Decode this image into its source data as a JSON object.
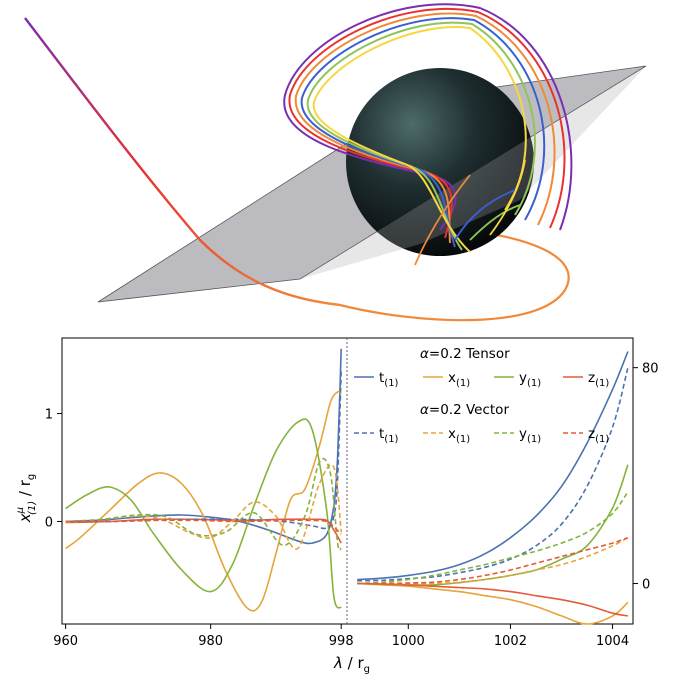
{
  "chart_data": {
    "type": "line",
    "top_panel": {
      "description_visible": false,
      "colors": [
        "#7b2fb0",
        "#e8322e",
        "#f08a3a",
        "#3a5fd0",
        "#8fc45a",
        "#f5d742"
      ]
    },
    "left_axis": {
      "xlim": [
        959.5,
        998.8
      ],
      "ylim": [
        -0.95,
        1.7
      ],
      "xticks": [
        {
          "v": 960,
          "label": "960"
        },
        {
          "v": 980,
          "label": "980"
        },
        {
          "v": 998,
          "label": "998"
        }
      ],
      "yticks": [
        {
          "v": 0,
          "label": "0"
        },
        {
          "v": 1,
          "label": "1"
        }
      ],
      "ylabel_main": "x",
      "ylabel_sup": "μ",
      "ylabel_sub": "(1)",
      "ylabel_tail": " / r",
      "ylabel_tail_sub": "g"
    },
    "right_axis": {
      "xlim": [
        998.8,
        1004.4
      ],
      "ylim": [
        -15,
        91
      ],
      "xticks": [
        {
          "v": 1000,
          "label": "1000"
        },
        {
          "v": 1002,
          "label": "1002"
        },
        {
          "v": 1004,
          "label": "1004"
        }
      ],
      "yticks": [
        {
          "v": 0,
          "label": "0"
        },
        {
          "v": 80,
          "label": "80"
        }
      ]
    },
    "xlabel_main": "λ",
    "xlabel_tail": " / r",
    "xlabel_tail_sub": "g",
    "legend": {
      "placement": "top-right",
      "groups": [
        {
          "title_alpha": "α",
          "title_rest": "=0.2 Tensor",
          "style": "solid"
        },
        {
          "title_alpha": "α",
          "title_rest": "=0.2 Vector",
          "style": "dashed"
        }
      ],
      "entries": [
        {
          "base": "t",
          "sub": "(1)",
          "color": "#4c72b0"
        },
        {
          "base": "x",
          "sub": "(1)",
          "color": "#e8a33c"
        },
        {
          "base": "y",
          "sub": "(1)",
          "color": "#86b33c"
        },
        {
          "base": "z",
          "sub": "(1)",
          "color": "#e45c3a"
        }
      ]
    },
    "series_left": [
      {
        "name": "t(1) Tensor",
        "color": "#4c72b0",
        "dash": false,
        "x": [
          960,
          964,
          968,
          972,
          976,
          980,
          984,
          988,
          992,
          994,
          996,
          997,
          997.5,
          998
        ],
        "y": [
          0.0,
          0.01,
          0.03,
          0.05,
          0.06,
          0.04,
          0.0,
          -0.08,
          -0.18,
          -0.2,
          -0.12,
          0.15,
          0.6,
          1.6
        ]
      },
      {
        "name": "x(1) Tensor",
        "color": "#e8a33c",
        "dash": false,
        "x": [
          960,
          962,
          966,
          970,
          973,
          976,
          979,
          982,
          985,
          987,
          989,
          991,
          993,
          995,
          996.5,
          997.5,
          998
        ],
        "y": [
          -0.25,
          -0.15,
          0.1,
          0.35,
          0.45,
          0.35,
          0.05,
          -0.45,
          -0.8,
          -0.75,
          -0.3,
          0.2,
          0.3,
          0.7,
          1.1,
          1.2,
          1.18
        ]
      },
      {
        "name": "y(1) Tensor",
        "color": "#86b33c",
        "dash": false,
        "x": [
          960,
          963,
          966,
          969,
          972,
          976,
          980,
          983,
          986,
          989,
          992,
          994,
          996,
          997,
          998
        ],
        "y": [
          0.12,
          0.25,
          0.32,
          0.2,
          -0.1,
          -0.45,
          -0.65,
          -0.4,
          0.15,
          0.65,
          0.92,
          0.85,
          0.1,
          -0.7,
          -0.8
        ]
      },
      {
        "name": "z(1) Tensor",
        "color": "#e45c3a",
        "dash": false,
        "x": [
          960,
          966,
          972,
          978,
          984,
          990,
          994,
          996,
          997,
          998
        ],
        "y": [
          -0.01,
          0.0,
          0.02,
          0.02,
          0.01,
          0.02,
          0.02,
          0.01,
          -0.08,
          -0.2
        ]
      },
      {
        "name": "t(1) Vector",
        "color": "#4c72b0",
        "dash": true,
        "x": [
          960,
          966,
          972,
          978,
          984,
          990,
          994,
          996,
          997,
          997.5,
          998
        ],
        "y": [
          0.0,
          0.0,
          0.01,
          0.02,
          0.02,
          0.0,
          -0.04,
          -0.06,
          0.05,
          0.4,
          1.4
        ]
      },
      {
        "name": "x(1) Vector",
        "color": "#e8a33c",
        "dash": true,
        "x": [
          960,
          964,
          968,
          971,
          974,
          977,
          980,
          983,
          986,
          989,
          992,
          995,
          997,
          998
        ],
        "y": [
          -0.01,
          0.01,
          0.04,
          0.05,
          0.0,
          -0.1,
          -0.15,
          0.0,
          0.18,
          0.05,
          -0.25,
          0.35,
          0.5,
          -0.1
        ]
      },
      {
        "name": "y(1) Vector",
        "color": "#86b33c",
        "dash": true,
        "x": [
          960,
          965,
          970,
          974,
          978,
          982,
          986,
          990,
          993,
          995,
          996.5,
          997.5,
          998
        ],
        "y": [
          0.0,
          0.02,
          0.06,
          0.04,
          -0.12,
          -0.1,
          0.08,
          -0.22,
          0.05,
          0.55,
          0.45,
          -0.2,
          -0.25
        ]
      },
      {
        "name": "z(1) Vector",
        "color": "#e45c3a",
        "dash": true,
        "x": [
          960,
          966,
          972,
          978,
          984,
          990,
          994,
          996,
          997,
          998
        ],
        "y": [
          0.0,
          0.0,
          0.01,
          0.01,
          0.0,
          0.01,
          0.01,
          0.0,
          -0.05,
          -0.12
        ]
      }
    ],
    "series_right": [
      {
        "name": "t(1) Tensor",
        "color": "#4c72b0",
        "dash": false,
        "x": [
          999,
          999.5,
          1000,
          1000.5,
          1001,
          1001.5,
          1002,
          1002.5,
          1003,
          1003.5,
          1004,
          1004.3
        ],
        "y": [
          1.5,
          2,
          3,
          4.5,
          7,
          11,
          17,
          25,
          36,
          52,
          72,
          86
        ]
      },
      {
        "name": "x(1) Tensor",
        "color": "#e8a33c",
        "dash": false,
        "x": [
          999,
          999.5,
          1000,
          1000.5,
          1001,
          1001.5,
          1002,
          1002.5,
          1003,
          1003.5,
          1004,
          1004.3
        ],
        "y": [
          0,
          -0.5,
          -1,
          -2,
          -3,
          -4.5,
          -6,
          -8.5,
          -12,
          -15,
          -12,
          -7
        ]
      },
      {
        "name": "y(1) Tensor",
        "color": "#86b33c",
        "dash": false,
        "x": [
          999,
          999.5,
          1000,
          1000.5,
          1001,
          1001.5,
          1002,
          1002.5,
          1003,
          1003.5,
          1004,
          1004.3
        ],
        "y": [
          0,
          -0.2,
          -0.5,
          -0.5,
          0.3,
          1.5,
          3,
          5,
          9,
          14,
          28,
          44
        ]
      },
      {
        "name": "z(1) Tensor",
        "color": "#e45c3a",
        "dash": false,
        "x": [
          999,
          999.5,
          1000,
          1000.5,
          1001,
          1001.5,
          1002,
          1002.5,
          1003,
          1003.5,
          1004,
          1004.3
        ],
        "y": [
          0,
          -0.2,
          -0.5,
          -1,
          -1.5,
          -2,
          -3,
          -4.5,
          -6,
          -8,
          -11,
          -12
        ]
      },
      {
        "name": "t(1) Vector",
        "color": "#4c72b0",
        "dash": true,
        "x": [
          999,
          999.5,
          1000,
          1000.5,
          1001,
          1001.5,
          1002,
          1002.5,
          1003,
          1003.5,
          1004,
          1004.3
        ],
        "y": [
          1,
          1.2,
          1.8,
          2.5,
          4,
          6,
          9,
          14,
          22,
          36,
          58,
          80
        ]
      },
      {
        "name": "x(1) Vector",
        "color": "#e8a33c",
        "dash": true,
        "x": [
          999,
          999.5,
          1000,
          1000.5,
          1001,
          1001.5,
          1002,
          1002.5,
          1003,
          1003.5,
          1004,
          1004.3
        ],
        "y": [
          0,
          0,
          0,
          0,
          0.5,
          1.5,
          3,
          5,
          7,
          10,
          14,
          17
        ]
      },
      {
        "name": "y(1) Vector",
        "color": "#86b33c",
        "dash": true,
        "x": [
          999,
          999.5,
          1000,
          1000.5,
          1001,
          1001.5,
          1002,
          1002.5,
          1003,
          1003.5,
          1004,
          1004.3
        ],
        "y": [
          0,
          0.5,
          1.5,
          3,
          5,
          7,
          9.5,
          12,
          15,
          19,
          26,
          34
        ]
      },
      {
        "name": "z(1) Vector",
        "color": "#e45c3a",
        "dash": true,
        "x": [
          999,
          999.5,
          1000,
          1000.5,
          1001,
          1001.5,
          1002,
          1002.5,
          1003,
          1003.5,
          1004,
          1004.3
        ],
        "y": [
          0,
          0,
          0.2,
          0.5,
          1.5,
          3,
          5,
          7.5,
          10,
          12.5,
          15,
          17
        ]
      }
    ]
  }
}
